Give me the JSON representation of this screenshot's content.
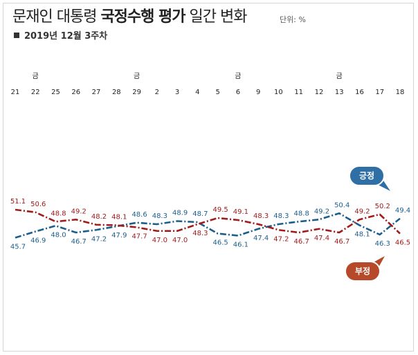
{
  "header": {
    "title_pre": "문재인 대통령 ",
    "title_bold": "국정수행 평가",
    "title_post": " 일간 변화",
    "unit": "단위: %",
    "subtitle": "2019년 12월 3주차"
  },
  "colors": {
    "positive": "#1b5e8c",
    "negative": "#a11b1b",
    "bubble_positive": "#2f6fa5",
    "bubble_negative": "#b5492a"
  },
  "chart_data": {
    "type": "line",
    "title": "문재인 대통령 국정수행 평가 일간 변화",
    "subtitle": "2019년 12월 3주차",
    "unit": "단위: %",
    "x": [
      "21",
      "22",
      "25",
      "26",
      "27",
      "28",
      "29",
      "2",
      "3",
      "4",
      "5",
      "6",
      "9",
      "10",
      "11",
      "12",
      "13",
      "16",
      "17",
      "18"
    ],
    "weekday_marks": [
      {
        "index": 1,
        "label": "금"
      },
      {
        "index": 6,
        "label": "금"
      },
      {
        "index": 11,
        "label": "금"
      },
      {
        "index": 16,
        "label": "금"
      }
    ],
    "series": [
      {
        "name": "긍정",
        "values": [
          45.7,
          46.9,
          48.0,
          46.7,
          47.2,
          47.9,
          48.6,
          48.3,
          48.9,
          48.7,
          46.5,
          46.1,
          47.4,
          48.3,
          48.8,
          49.2,
          50.4,
          48.1,
          46.3,
          49.4
        ]
      },
      {
        "name": "부정",
        "values": [
          51.1,
          50.6,
          48.8,
          49.2,
          48.2,
          48.1,
          47.7,
          47.0,
          47.0,
          48.3,
          49.5,
          49.1,
          48.3,
          47.2,
          46.7,
          47.4,
          46.7,
          49.2,
          50.2,
          46.5
        ]
      }
    ],
    "ylim": [
      44,
      52
    ],
    "grid": false,
    "legend": "callout bubbles"
  }
}
